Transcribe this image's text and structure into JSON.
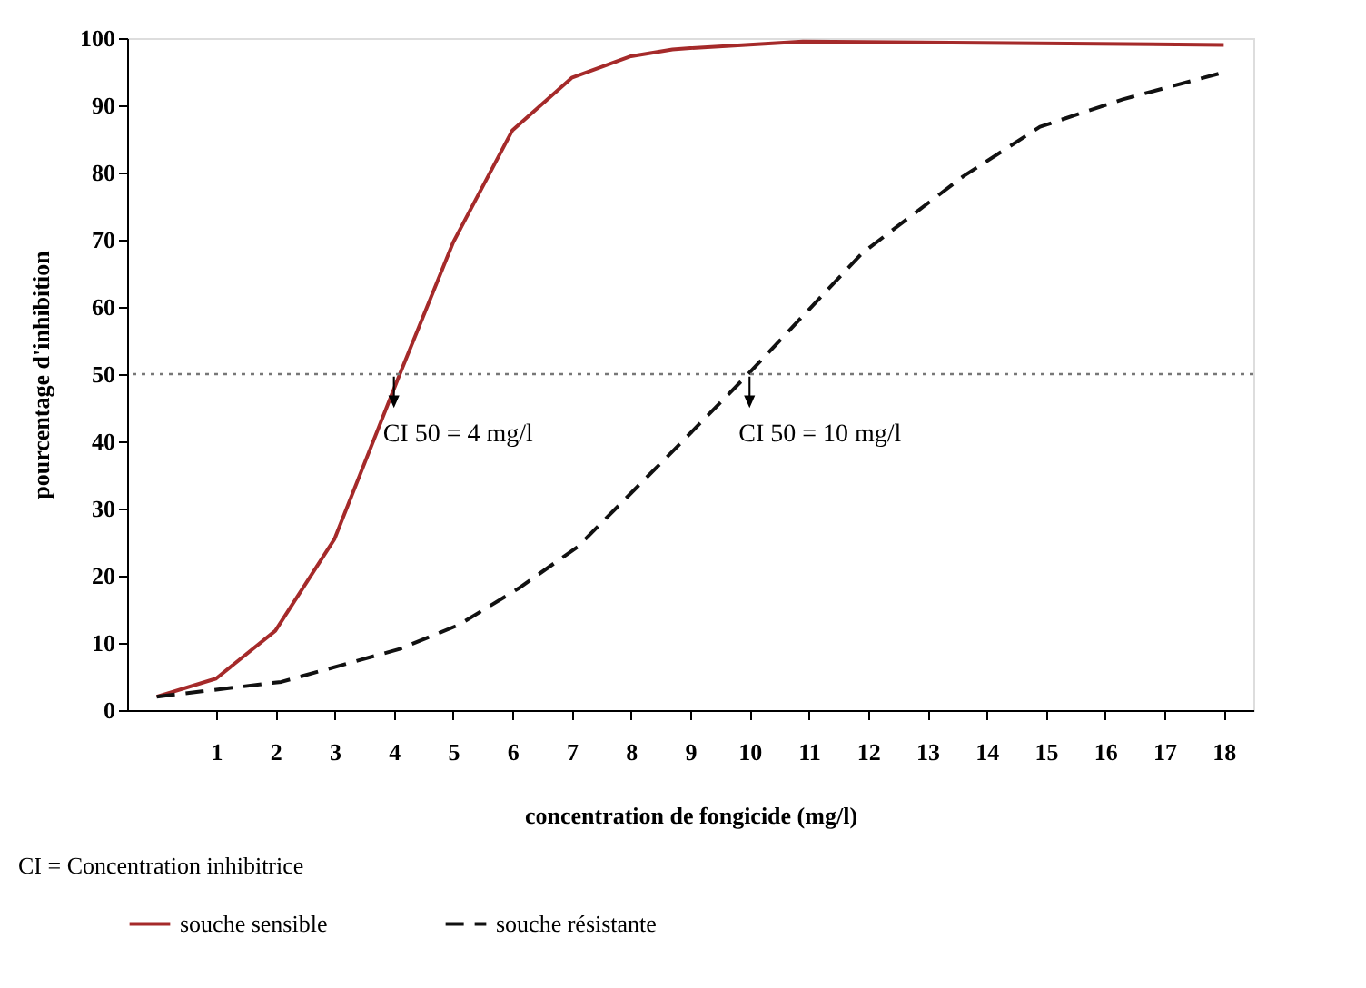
{
  "chart_data": {
    "type": "line",
    "xlabel": "concentration de fongicide (mg/l)",
    "ylabel": "pourcentage d'inhibition",
    "series": [
      {
        "name": "souche sensible",
        "color": "#a52a2a",
        "line_style": "solid",
        "x": [
          0,
          1,
          2,
          3,
          4.1,
          5,
          6,
          7,
          8,
          8.7,
          9,
          10.9,
          18
        ],
        "values": [
          2,
          4.7,
          11.8,
          25.5,
          50,
          69.6,
          86.3,
          94.1,
          97.3,
          98.3,
          98.5,
          99.5,
          99
        ]
      },
      {
        "name": "souche résistante",
        "color": "#111111",
        "line_style": "dashed",
        "x": [
          0,
          2.1,
          4.1,
          5.1,
          6.1,
          7.1,
          8.7,
          9.9,
          11.9,
          13.6,
          14.9,
          16.3,
          18
        ],
        "values": [
          2,
          4.2,
          9.1,
          12.7,
          18.1,
          24.3,
          38.5,
          49.3,
          68,
          79.4,
          86.8,
          90.9,
          94.9
        ]
      }
    ],
    "xlim": [
      -0.5,
      18.5
    ],
    "xticks": [
      1,
      2,
      3,
      4,
      5,
      6,
      7,
      8,
      9,
      10,
      11,
      12,
      13,
      14,
      15,
      16,
      17,
      18
    ],
    "ylim": [
      0,
      100
    ],
    "yticks": [
      0,
      10,
      20,
      30,
      40,
      50,
      60,
      70,
      80,
      90,
      100
    ],
    "ref_lines": [
      {
        "axis": "y",
        "value": 50,
        "label": null,
        "color": "#777777",
        "line_style": "dotted"
      }
    ],
    "annotations": [
      {
        "text": "CI 50 = 4 mg/l",
        "x": 4,
        "y": 50
      },
      {
        "text": "CI 50 = 10 mg/l",
        "x": 10,
        "y": 50
      },
      "CI = Concentration inhibitrice"
    ],
    "grid": false,
    "legend": "bottom"
  }
}
